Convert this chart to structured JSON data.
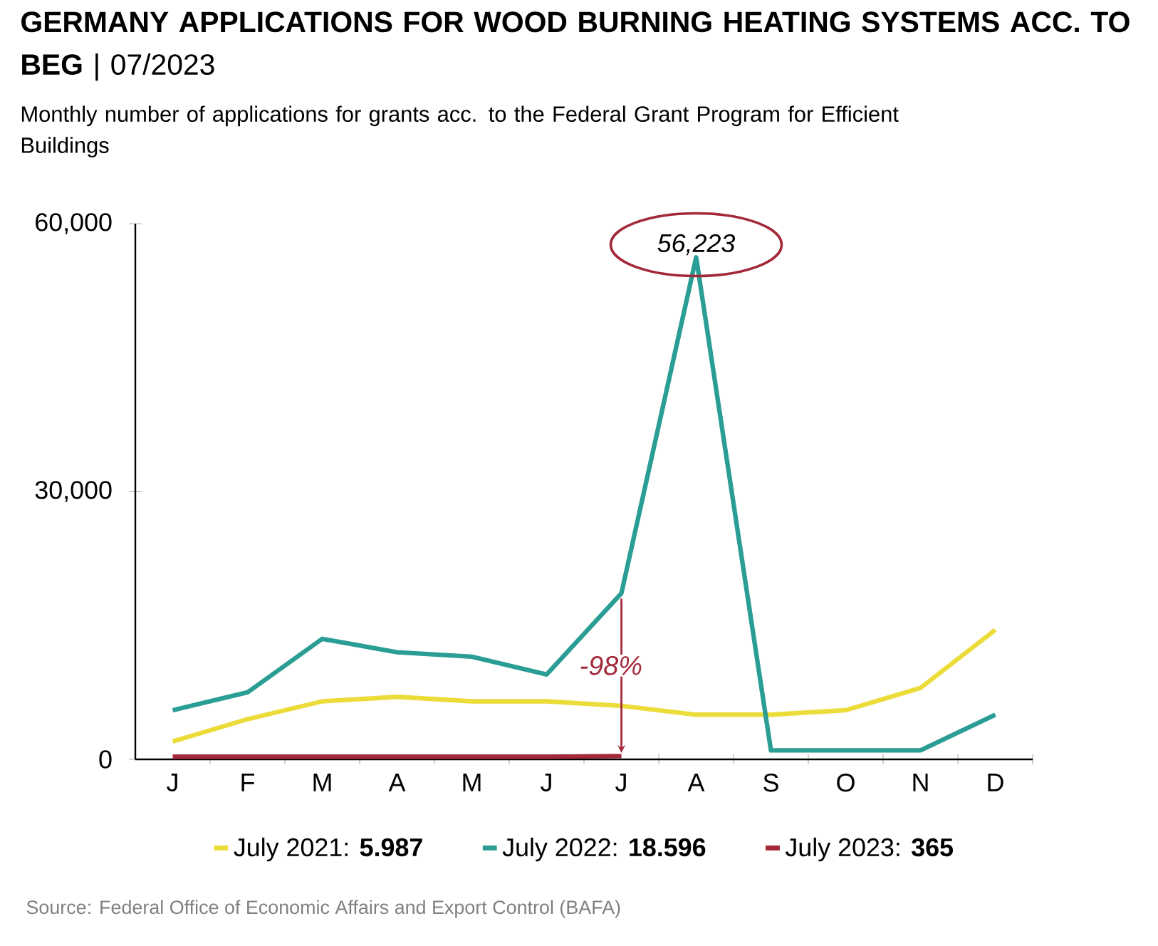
{
  "chart_data": {
    "type": "line",
    "title": "**GERMANY APPLICATIONS FOR WOOD BURNING HEATING SYSTEMS ACC. TO BEG** | 07/2023",
    "subtitle": "Monthly number of applications for grants acc. to the Federal Grant Program for Efficient Buildings",
    "categories": [
      "J",
      "F",
      "M",
      "A",
      "M",
      "J",
      "J",
      "A",
      "S",
      "O",
      "N",
      "D"
    ],
    "series": [
      {
        "name": "July 2021: **5.987**",
        "color": "#ebdc3a",
        "values": [
          2000,
          4500,
          6500,
          7000,
          6500,
          6500,
          5987,
          5000,
          5000,
          5500,
          8000,
          14500
        ]
      },
      {
        "name": "July 2022: **18.596**",
        "color": "#2a9d94",
        "values": [
          5500,
          7500,
          13500,
          12000,
          11500,
          9500,
          18596,
          56223,
          1000,
          1000,
          1000,
          5000
        ],
        "value_labels": [
          null,
          null,
          null,
          null,
          null,
          null,
          null,
          "56,223",
          null,
          null,
          null,
          null
        ]
      },
      {
        "name": "July 2023: **365**",
        "color": "#a3293a",
        "values": [
          300,
          300,
          300,
          300,
          300,
          300,
          365,
          null,
          null,
          null,
          null,
          null
        ]
      }
    ],
    "ylim": [
      0,
      60000
    ],
    "yticks": [
      0,
      {
        "value": 30000,
        "label": "30,000"
      },
      {
        "value": 60000,
        "label": "60,000"
      }
    ],
    "legend": "bottom",
    "annotations": [
      "-98%",
      "Source: Federal Office of Economic Affairs and Export Control (BAFA)"
    ]
  }
}
